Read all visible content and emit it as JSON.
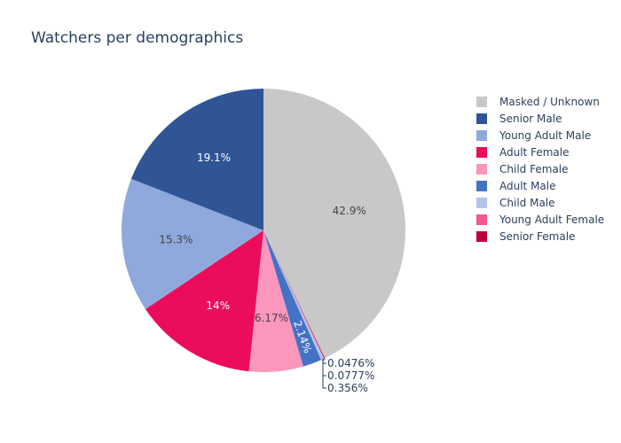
{
  "chart_data": {
    "type": "pie",
    "title": "Watchers per demographics",
    "slices": [
      {
        "label": "Masked / Unknown",
        "value": 42.9,
        "text": "42.9%",
        "color": "#c8c8c8",
        "text_color": "#444444"
      },
      {
        "label": "Young Adult Female",
        "value": 0.0476,
        "text": "0.0476%",
        "color": "#f2588a",
        "text_color": "#2a3f5f"
      },
      {
        "label": "Senior Female",
        "value": 0.0777,
        "text": "0.0777%",
        "color": "#c0003c",
        "text_color": "#2a3f5f"
      },
      {
        "label": "Child Male",
        "value": 0.356,
        "text": "0.356%",
        "color": "#b3c4ea",
        "text_color": "#2a3f5f"
      },
      {
        "label": "Adult Male",
        "value": 2.14,
        "text": "2.14%",
        "color": "#4472c4",
        "text_color": "#ffffff"
      },
      {
        "label": "Child Female",
        "value": 6.17,
        "text": "6.17%",
        "color": "#fb96bd",
        "text_color": "#444444"
      },
      {
        "label": "Adult Female",
        "value": 14,
        "text": "14%",
        "color": "#ec0c5c",
        "text_color": "#ffffff"
      },
      {
        "label": "Young Adult Male",
        "value": 15.3,
        "text": "15.3%",
        "color": "#8fa9dc",
        "text_color": "#444444"
      },
      {
        "label": "Senior Male",
        "value": 19.1,
        "text": "19.1%",
        "color": "#2f5597",
        "text_color": "#ffffff"
      }
    ],
    "legend": {
      "position": "right",
      "items": [
        {
          "label": "Masked / Unknown",
          "color": "#c8c8c8"
        },
        {
          "label": "Senior Male",
          "color": "#2f5597"
        },
        {
          "label": "Young Adult Male",
          "color": "#8fa9dc"
        },
        {
          "label": "Adult Female",
          "color": "#ec0c5c"
        },
        {
          "label": "Child Female",
          "color": "#fb96bd"
        },
        {
          "label": "Adult Male",
          "color": "#4472c4"
        },
        {
          "label": "Child Male",
          "color": "#b3c4ea"
        },
        {
          "label": "Young Adult Female",
          "color": "#f2588a"
        },
        {
          "label": "Senior Female",
          "color": "#c0003c"
        }
      ]
    }
  }
}
